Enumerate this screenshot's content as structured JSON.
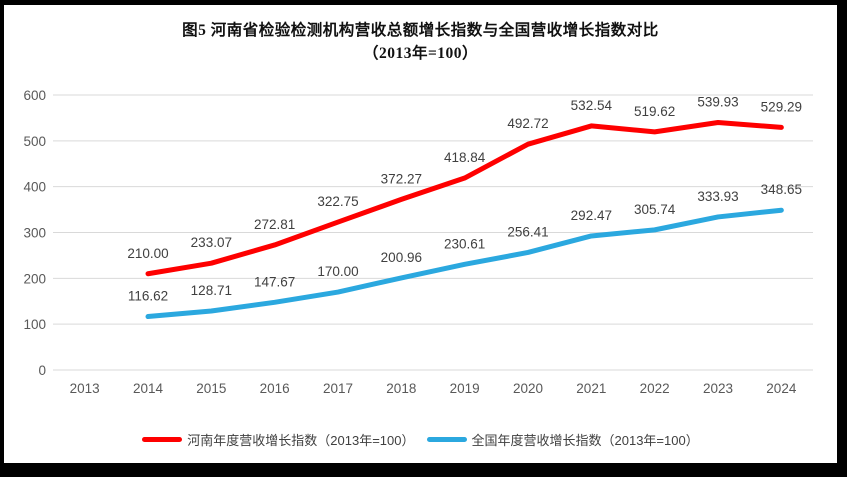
{
  "figure": {
    "title": "图5  河南省检验检测机构营收总额增长指数与全国营收增长指数对比",
    "subtitle": "（2013年=100）"
  },
  "colors": {
    "henan_line": "#FE0000",
    "national_line": "#2BA8DF",
    "gridline": "#D9D9D9",
    "axis_label": "#595959",
    "data_label": "#404040",
    "frame_border": "#000000",
    "background": "#FFFFFF"
  },
  "chart_data": {
    "type": "line",
    "title": "图5  河南省检验检测机构营收总额增长指数与全国营收增长指数对比",
    "subtitle": "（2013年=100）",
    "categories": [
      "2013",
      "2014",
      "2015",
      "2016",
      "2017",
      "2018",
      "2019",
      "2020",
      "2021",
      "2022",
      "2023",
      "2024"
    ],
    "series": [
      {
        "id": "henan",
        "name": "河南年度营收增长指数（2013年=100）",
        "color": "#FE0000",
        "values": [
          null,
          210.0,
          233.07,
          272.81,
          322.75,
          372.27,
          418.84,
          492.72,
          532.54,
          519.62,
          539.93,
          529.29
        ]
      },
      {
        "id": "national",
        "name": "全国年度营收增长指数（2013年=100）",
        "color": "#2BA8DF",
        "values": [
          null,
          116.62,
          128.71,
          147.67,
          170.0,
          200.96,
          230.61,
          256.41,
          292.47,
          305.74,
          333.93,
          348.65
        ]
      }
    ],
    "xlabel": "",
    "ylabel": "",
    "ylim": [
      0,
      600
    ],
    "y_ticks": [
      0,
      100,
      200,
      300,
      400,
      500,
      600
    ],
    "grid": true,
    "data_labels": true,
    "data_label_decimals": 2,
    "legend_position": "bottom"
  }
}
